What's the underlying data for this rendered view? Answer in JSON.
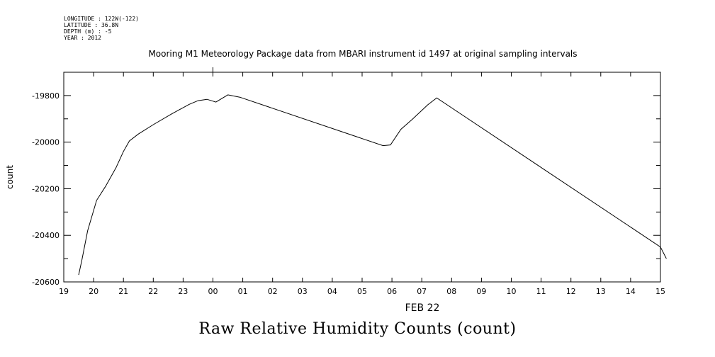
{
  "header": {
    "lines": [
      "LONGITUDE : 122W(-122)",
      "LATITUDE : 36.8N",
      "DEPTH (m) : -5",
      "YEAR : 2012"
    ]
  },
  "chart_data": {
    "type": "line",
    "title": "Mooring M1 Meteorology Package data from MBARI instrument id 1497 at original sampling intervals",
    "ylabel": "count",
    "xlabel": "FEB 22",
    "ylim": [
      -20600,
      -19700
    ],
    "yticks": [
      -20600,
      -20400,
      -20200,
      -20000,
      -19800
    ],
    "ytick_labels": [
      "-20600",
      "-20400",
      "-20200",
      "-20000",
      "-19800"
    ],
    "xlim": [
      19,
      39
    ],
    "xticks": [
      19,
      20,
      21,
      22,
      23,
      24,
      25,
      26,
      27,
      28,
      29,
      30,
      31,
      32,
      33,
      34,
      35,
      36,
      37,
      38,
      39
    ],
    "xtick_labels": [
      "19",
      "20",
      "21",
      "22",
      "23",
      "00",
      "01",
      "02",
      "03",
      "04",
      "05",
      "06",
      "07",
      "08",
      "09",
      "10",
      "11",
      "12",
      "13",
      "14",
      "15"
    ],
    "series": [
      {
        "x": [
          19.5,
          19.6,
          19.8,
          20.1,
          20.4,
          20.75,
          21.0,
          21.2,
          21.5,
          22.0,
          22.6,
          23.2,
          23.5,
          23.8,
          24.1,
          24.5,
          24.9,
          29.7,
          29.95,
          30.3,
          30.7,
          31.2,
          31.5,
          39.0,
          39.2
        ],
        "y": [
          -20570,
          -20510,
          -20380,
          -20250,
          -20190,
          -20110,
          -20040,
          -19995,
          -19965,
          -19925,
          -19880,
          -19838,
          -19822,
          -19816,
          -19828,
          -19797,
          -19807,
          -20015,
          -20012,
          -19945,
          -19900,
          -19840,
          -19810,
          -20450,
          -20500
        ]
      }
    ],
    "grid": false,
    "legend": "none"
  },
  "caption": "Raw Relative Humidity Counts (count)"
}
